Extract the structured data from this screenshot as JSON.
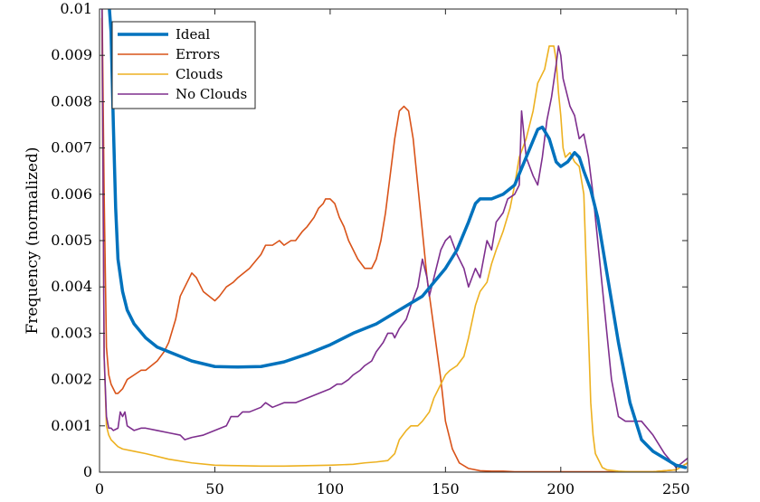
{
  "chart_data": {
    "type": "line",
    "title": "",
    "xlabel": "",
    "ylabel": "Frequency (normalized)",
    "xlim": [
      0,
      255
    ],
    "ylim": [
      0,
      0.01
    ],
    "xticks": [
      0,
      50,
      100,
      150,
      200,
      250
    ],
    "xtick_labels": [
      "0",
      "50",
      "100",
      "150",
      "200",
      "250"
    ],
    "yticks": [
      0,
      0.001,
      0.002,
      0.003,
      0.004,
      0.005,
      0.006,
      0.007,
      0.008,
      0.009,
      0.01
    ],
    "ytick_labels": [
      "0",
      "0.001",
      "0.002",
      "0.003",
      "0.004",
      "0.005",
      "0.006",
      "0.007",
      "0.008",
      "0.009",
      "0.01"
    ],
    "grid": false,
    "legend": {
      "position": "top-left"
    },
    "series": [
      {
        "name": "Ideal",
        "color": "#0072BD",
        "width": 3.5,
        "x": [
          4,
          5,
          6,
          7,
          8,
          10,
          12,
          15,
          20,
          25,
          30,
          40,
          50,
          60,
          70,
          80,
          90,
          100,
          110,
          120,
          130,
          140,
          150,
          155,
          160,
          163,
          165,
          170,
          175,
          180,
          185,
          190,
          192,
          195,
          198,
          200,
          203,
          206,
          208,
          210,
          213,
          216,
          220,
          225,
          230,
          235,
          240,
          245,
          250,
          254
        ],
        "y": [
          0.0102,
          0.0095,
          0.0075,
          0.0057,
          0.0046,
          0.0039,
          0.0035,
          0.0032,
          0.0029,
          0.0027,
          0.0026,
          0.0024,
          0.00228,
          0.00227,
          0.00228,
          0.00238,
          0.00255,
          0.00275,
          0.003,
          0.0032,
          0.0035,
          0.0038,
          0.0044,
          0.0048,
          0.0054,
          0.0058,
          0.0059,
          0.0059,
          0.006,
          0.0062,
          0.0068,
          0.0074,
          0.00745,
          0.0072,
          0.0067,
          0.0066,
          0.0067,
          0.0069,
          0.0068,
          0.0065,
          0.0061,
          0.0055,
          0.0043,
          0.0028,
          0.0015,
          0.0007,
          0.00045,
          0.0003,
          0.00015,
          0.0001
        ]
      },
      {
        "name": "Errors",
        "color": "#D95319",
        "width": 1.6,
        "x": [
          1,
          2,
          3,
          4,
          5,
          6,
          7,
          8,
          10,
          12,
          15,
          18,
          20,
          25,
          28,
          30,
          33,
          35,
          38,
          40,
          42,
          45,
          50,
          52,
          55,
          58,
          60,
          65,
          70,
          72,
          75,
          78,
          80,
          83,
          85,
          88,
          90,
          93,
          95,
          97,
          98,
          100,
          102,
          104,
          106,
          108,
          110,
          112,
          115,
          118,
          120,
          122,
          124,
          126,
          128,
          130,
          132,
          134,
          136,
          138,
          140,
          142,
          145,
          148,
          150,
          153,
          156,
          160,
          165,
          170,
          175,
          180,
          190,
          200,
          210,
          220,
          230,
          240,
          250,
          255
        ],
        "y": [
          0.0106,
          0.006,
          0.0027,
          0.0021,
          0.0019,
          0.0018,
          0.0017,
          0.0017,
          0.0018,
          0.002,
          0.0021,
          0.0022,
          0.0022,
          0.0024,
          0.0026,
          0.0028,
          0.0033,
          0.0038,
          0.0041,
          0.0043,
          0.0042,
          0.0039,
          0.0037,
          0.0038,
          0.004,
          0.0041,
          0.0042,
          0.0044,
          0.0047,
          0.0049,
          0.0049,
          0.005,
          0.0049,
          0.005,
          0.005,
          0.0052,
          0.0053,
          0.0055,
          0.0057,
          0.0058,
          0.0059,
          0.0059,
          0.0058,
          0.0055,
          0.0053,
          0.005,
          0.0048,
          0.0046,
          0.0044,
          0.0044,
          0.0046,
          0.005,
          0.0056,
          0.0064,
          0.0072,
          0.0078,
          0.0079,
          0.0078,
          0.0072,
          0.0062,
          0.0052,
          0.0042,
          0.0031,
          0.002,
          0.0011,
          0.0005,
          0.0002,
          8e-05,
          3e-05,
          2e-05,
          2e-05,
          1e-05,
          1e-05,
          1e-05,
          1e-05,
          1e-05,
          1e-05,
          1e-05,
          5e-05,
          0.0002
        ]
      },
      {
        "name": "Clouds",
        "color": "#EDB120",
        "width": 1.6,
        "x": [
          1,
          2,
          3,
          4,
          5,
          6,
          7,
          8,
          10,
          15,
          20,
          30,
          40,
          50,
          60,
          70,
          80,
          90,
          100,
          110,
          115,
          120,
          125,
          128,
          130,
          133,
          135,
          138,
          140,
          143,
          145,
          148,
          150,
          152,
          155,
          158,
          160,
          163,
          165,
          168,
          170,
          172,
          175,
          178,
          180,
          182,
          185,
          188,
          190,
          193,
          195,
          197,
          198,
          199,
          200,
          201,
          202,
          204,
          206,
          208,
          210,
          211,
          212,
          213,
          214,
          215,
          218,
          220,
          225,
          230,
          240,
          250,
          255
        ],
        "y": [
          0.0098,
          0.0025,
          0.001,
          0.0008,
          0.0007,
          0.00065,
          0.0006,
          0.00055,
          0.0005,
          0.00045,
          0.0004,
          0.00028,
          0.0002,
          0.00015,
          0.00014,
          0.00013,
          0.00013,
          0.00014,
          0.00015,
          0.00017,
          0.0002,
          0.00022,
          0.00025,
          0.0004,
          0.0007,
          0.0009,
          0.001,
          0.001,
          0.0011,
          0.0013,
          0.0016,
          0.0019,
          0.0021,
          0.0022,
          0.0023,
          0.0025,
          0.0029,
          0.0036,
          0.0039,
          0.0041,
          0.0045,
          0.0048,
          0.0052,
          0.0057,
          0.0062,
          0.0068,
          0.0072,
          0.0078,
          0.0084,
          0.0087,
          0.0092,
          0.0092,
          0.0089,
          0.0082,
          0.0077,
          0.007,
          0.0068,
          0.0069,
          0.0067,
          0.0066,
          0.006,
          0.0045,
          0.003,
          0.0015,
          0.0008,
          0.0004,
          0.0001,
          5e-05,
          2e-05,
          1e-05,
          1e-05,
          5e-05,
          0.0002
        ]
      },
      {
        "name": "No Clouds",
        "color": "#7E2F8E",
        "width": 1.6,
        "x": [
          1,
          2,
          3,
          4,
          5,
          6,
          8,
          9,
          10,
          11,
          12,
          15,
          18,
          20,
          25,
          30,
          35,
          37,
          40,
          45,
          50,
          55,
          57,
          60,
          62,
          65,
          70,
          72,
          75,
          80,
          85,
          90,
          95,
          100,
          103,
          105,
          108,
          110,
          113,
          115,
          118,
          120,
          123,
          125,
          127,
          128,
          130,
          133,
          135,
          138,
          140,
          142,
          143,
          145,
          148,
          150,
          152,
          155,
          158,
          160,
          163,
          165,
          168,
          170,
          172,
          175,
          177,
          180,
          182,
          183,
          185,
          188,
          190,
          192,
          194,
          196,
          198,
          199,
          200,
          201,
          202,
          204,
          206,
          208,
          210,
          212,
          214,
          216,
          218,
          220,
          222,
          225,
          228,
          230,
          235,
          240,
          245,
          250,
          255
        ],
        "y": [
          0.0107,
          0.0025,
          0.0012,
          0.00095,
          0.00095,
          0.0009,
          0.00095,
          0.0013,
          0.0012,
          0.0013,
          0.001,
          0.0009,
          0.00095,
          0.00095,
          0.0009,
          0.00085,
          0.0008,
          0.0007,
          0.00075,
          0.0008,
          0.0009,
          0.001,
          0.0012,
          0.0012,
          0.0013,
          0.0013,
          0.0014,
          0.0015,
          0.0014,
          0.0015,
          0.0015,
          0.0016,
          0.0017,
          0.0018,
          0.0019,
          0.0019,
          0.002,
          0.0021,
          0.0022,
          0.0023,
          0.0024,
          0.0026,
          0.0028,
          0.003,
          0.003,
          0.0029,
          0.0031,
          0.0033,
          0.0036,
          0.004,
          0.0046,
          0.0042,
          0.0038,
          0.0042,
          0.0048,
          0.005,
          0.0051,
          0.0047,
          0.0044,
          0.004,
          0.0044,
          0.0042,
          0.005,
          0.0048,
          0.0054,
          0.0056,
          0.0059,
          0.006,
          0.0062,
          0.0078,
          0.0068,
          0.0064,
          0.0062,
          0.0068,
          0.0076,
          0.0081,
          0.0088,
          0.0092,
          0.009,
          0.0085,
          0.0083,
          0.0079,
          0.0077,
          0.0072,
          0.0073,
          0.0068,
          0.006,
          0.005,
          0.004,
          0.003,
          0.002,
          0.0012,
          0.0011,
          0.0011,
          0.0011,
          0.0008,
          0.0004,
          0.0001,
          0.0003
        ]
      }
    ]
  }
}
